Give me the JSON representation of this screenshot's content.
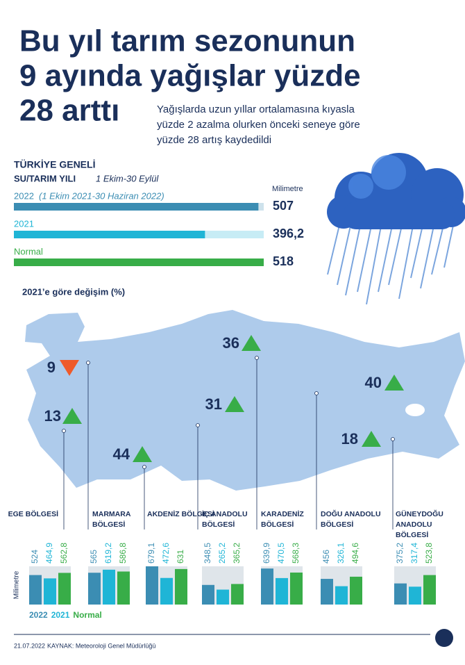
{
  "header": {
    "title": [
      "Bu yıl tarım sezonunun",
      "9 ayında yağışlar yüzde",
      "28 arttı"
    ],
    "subtitle": [
      "Yağışlarda uzun yıllar ortalamasına kıyasla",
      "yüzde 2 azalma olurken önceki seneye göre",
      "yüzde 28 artış kaydedildi"
    ]
  },
  "chart_data": [
    {
      "type": "hbar",
      "title": "TÜRKİYE GENELİ",
      "subtitle": "SU/TARIM YILI",
      "period": "1 Ekim-30 Eylül",
      "unit": "Milimetre",
      "note": "(1 Ekim 2021-30 Haziran 2022)",
      "categories": [
        "2022",
        "2021",
        "Normal"
      ],
      "values": [
        507,
        396.2,
        518
      ],
      "value_labels": [
        "507",
        "396,2",
        "518"
      ],
      "colors": [
        "#3b8db3",
        "#1fb5d6",
        "#38ad48"
      ]
    },
    {
      "type": "map",
      "title": "2021’e göre değişim (%)",
      "values": [
        13,
        9,
        44,
        31,
        36,
        40,
        18
      ],
      "trend": [
        "up",
        "down",
        "up",
        "up",
        "up",
        "up",
        "up"
      ],
      "up_color": "#38ad48",
      "down_color": "#ef5a2a"
    },
    {
      "type": "grouped-bar",
      "ylabel": "Milimetre",
      "categories": [
        "EGE BÖLGESİ",
        "MARMARA BÖLGESİ",
        "AKDENİZ BÖLGESİ",
        "İÇ ANADOLU BÖLGESİ",
        "KARADENİZ BÖLGESİ",
        "DOĞU ANADOLU BÖLGESİ",
        "GÜNEYDOĞU ANADOLU BÖLGESİ"
      ],
      "series": [
        {
          "name": "2022",
          "color": "#3b8db3",
          "values": [
            524,
            565,
            679.1,
            348.5,
            639.9,
            456,
            375.2
          ],
          "value_labels": [
            "524",
            "565",
            "679,1",
            "348,5",
            "639,9",
            "456",
            "375,2"
          ]
        },
        {
          "name": "2021",
          "color": "#1fb5d6",
          "values": [
            464.9,
            619.2,
            472.6,
            265.2,
            470.5,
            326.1,
            317.4
          ],
          "value_labels": [
            "464,9",
            "619,2",
            "472,6",
            "265,2",
            "470,5",
            "326,1",
            "317,4"
          ]
        },
        {
          "name": "Normal",
          "color": "#38ad48",
          "values": [
            562.8,
            586.8,
            631,
            365.2,
            568.3,
            494.6,
            523.8
          ],
          "value_labels": [
            "562,8",
            "586,8",
            "631",
            "365,2",
            "568,3",
            "494,6",
            "523,8"
          ]
        }
      ]
    }
  ],
  "footer": {
    "date": "21.07.2022",
    "source": "KAYNAK: Meteoroloji Genel Müdürlüğü"
  }
}
